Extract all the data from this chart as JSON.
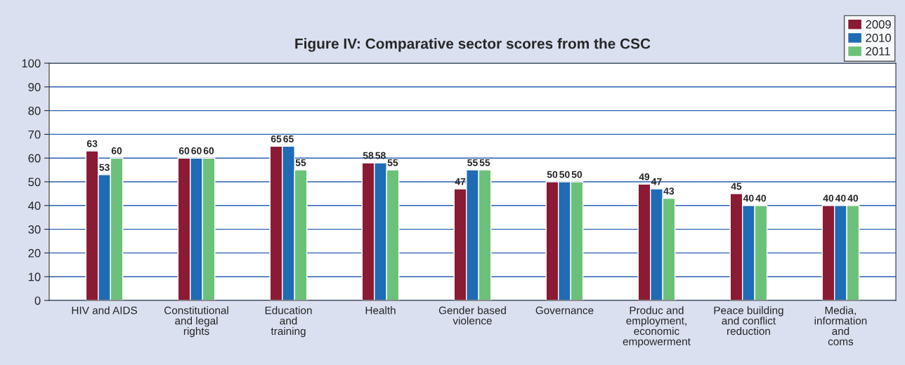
{
  "chart_data": {
    "type": "bar",
    "title": "Figure IV: Comparative sector scores from the CSC",
    "categories": [
      "HIV and AIDS",
      "Constitutional\nand legal\nrights",
      "Education\nand\ntraining",
      "Health",
      "Gender based\nviolence",
      "Governance",
      "Produc and\nemployment,\neconomic\nempowerment",
      "Peace building\nand conflict\nreduction",
      "Media,\ninformation\nand\ncoms"
    ],
    "series": [
      {
        "name": "2009",
        "color": "#8b1a34",
        "values": [
          63,
          60,
          65,
          58,
          47,
          50,
          49,
          45,
          40
        ]
      },
      {
        "name": "2010",
        "color": "#1f6bb5",
        "values": [
          53,
          60,
          65,
          58,
          55,
          50,
          47,
          40,
          40
        ]
      },
      {
        "name": "2011",
        "color": "#6cc17a",
        "values": [
          60,
          60,
          55,
          55,
          55,
          50,
          43,
          40,
          40
        ]
      }
    ],
    "ylim": [
      0,
      100
    ],
    "yticks": [
      0,
      10,
      20,
      30,
      40,
      50,
      60,
      70,
      80,
      90,
      100
    ],
    "grid": "y",
    "legend": "top right",
    "data_labels": true
  }
}
